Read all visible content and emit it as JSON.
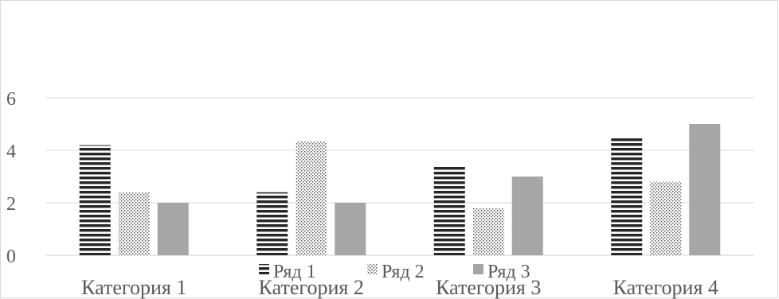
{
  "chart_data": {
    "type": "bar",
    "categories": [
      "Категория 1",
      "Категория 2",
      "Категория 3",
      "Категория 4"
    ],
    "series": [
      {
        "name": "Ряд 1",
        "values": [
          4.2,
          2.4,
          3.4,
          4.5
        ],
        "pattern": "horizontal-stripes",
        "color": "#262626"
      },
      {
        "name": "Ряд 2",
        "values": [
          2.4,
          4.35,
          1.8,
          2.8
        ],
        "pattern": "dots",
        "color": "#595959"
      },
      {
        "name": "Ряд 3",
        "values": [
          2,
          2,
          3,
          5
        ],
        "pattern": "solid",
        "color": "#a6a6a6"
      }
    ],
    "ylim": [
      0,
      6
    ],
    "yticks": [
      "0",
      "2",
      "4",
      "6"
    ],
    "grid": true,
    "legend_position": "bottom",
    "title": "",
    "xlabel": "",
    "ylabel": ""
  }
}
